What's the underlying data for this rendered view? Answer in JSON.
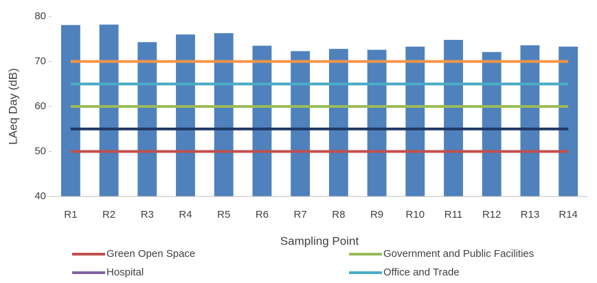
{
  "chart_data": {
    "type": "bar",
    "x_label": "Sampling Point",
    "y_label": "LAeq Day (dB)",
    "categories": [
      "R1",
      "R2",
      "R3",
      "R4",
      "R5",
      "R6",
      "R7",
      "R8",
      "R9",
      "R10",
      "R11",
      "R12",
      "R13",
      "R14"
    ],
    "values": [
      78.1,
      78.2,
      74.3,
      76.0,
      76.3,
      73.5,
      72.3,
      72.8,
      72.6,
      73.3,
      74.8,
      72.1,
      73.6,
      73.3
    ],
    "color": "#4f81bd",
    "ylim": [
      40,
      80
    ],
    "yticks": [
      40,
      50,
      60,
      70,
      80
    ],
    "series": [
      {
        "name": "Green Open Space",
        "color": "#c0504d",
        "values": [
          50,
          50,
          50,
          50,
          50,
          50,
          50,
          50,
          50,
          50,
          50,
          50,
          50,
          50
        ]
      },
      {
        "name": "Government and Public Facilities",
        "color": "#9bbb59",
        "values": [
          60,
          60,
          60,
          60,
          60,
          60,
          60,
          60,
          60,
          60,
          60,
          60,
          60,
          60
        ]
      },
      {
        "name": "Hospital",
        "color": "#8064a2",
        "values": [
          null,
          null,
          null,
          null,
          null,
          null,
          null,
          null,
          null,
          null,
          null,
          null,
          null,
          null
        ]
      },
      {
        "name": "Office and Trade",
        "color": "#4bacc6",
        "values": [
          65,
          65,
          65,
          65,
          65,
          65,
          65,
          65,
          65,
          65,
          65,
          65,
          65,
          65
        ]
      },
      {
        "color": "#1f3864",
        "values": [
          55,
          55,
          55,
          55,
          55,
          55,
          55,
          55,
          55,
          55,
          55,
          55,
          55,
          55
        ]
      },
      {
        "color": "#f79646",
        "values": [
          70,
          70,
          70,
          70,
          70,
          70,
          70,
          70,
          70,
          70,
          70,
          70,
          70,
          70
        ]
      }
    ]
  }
}
